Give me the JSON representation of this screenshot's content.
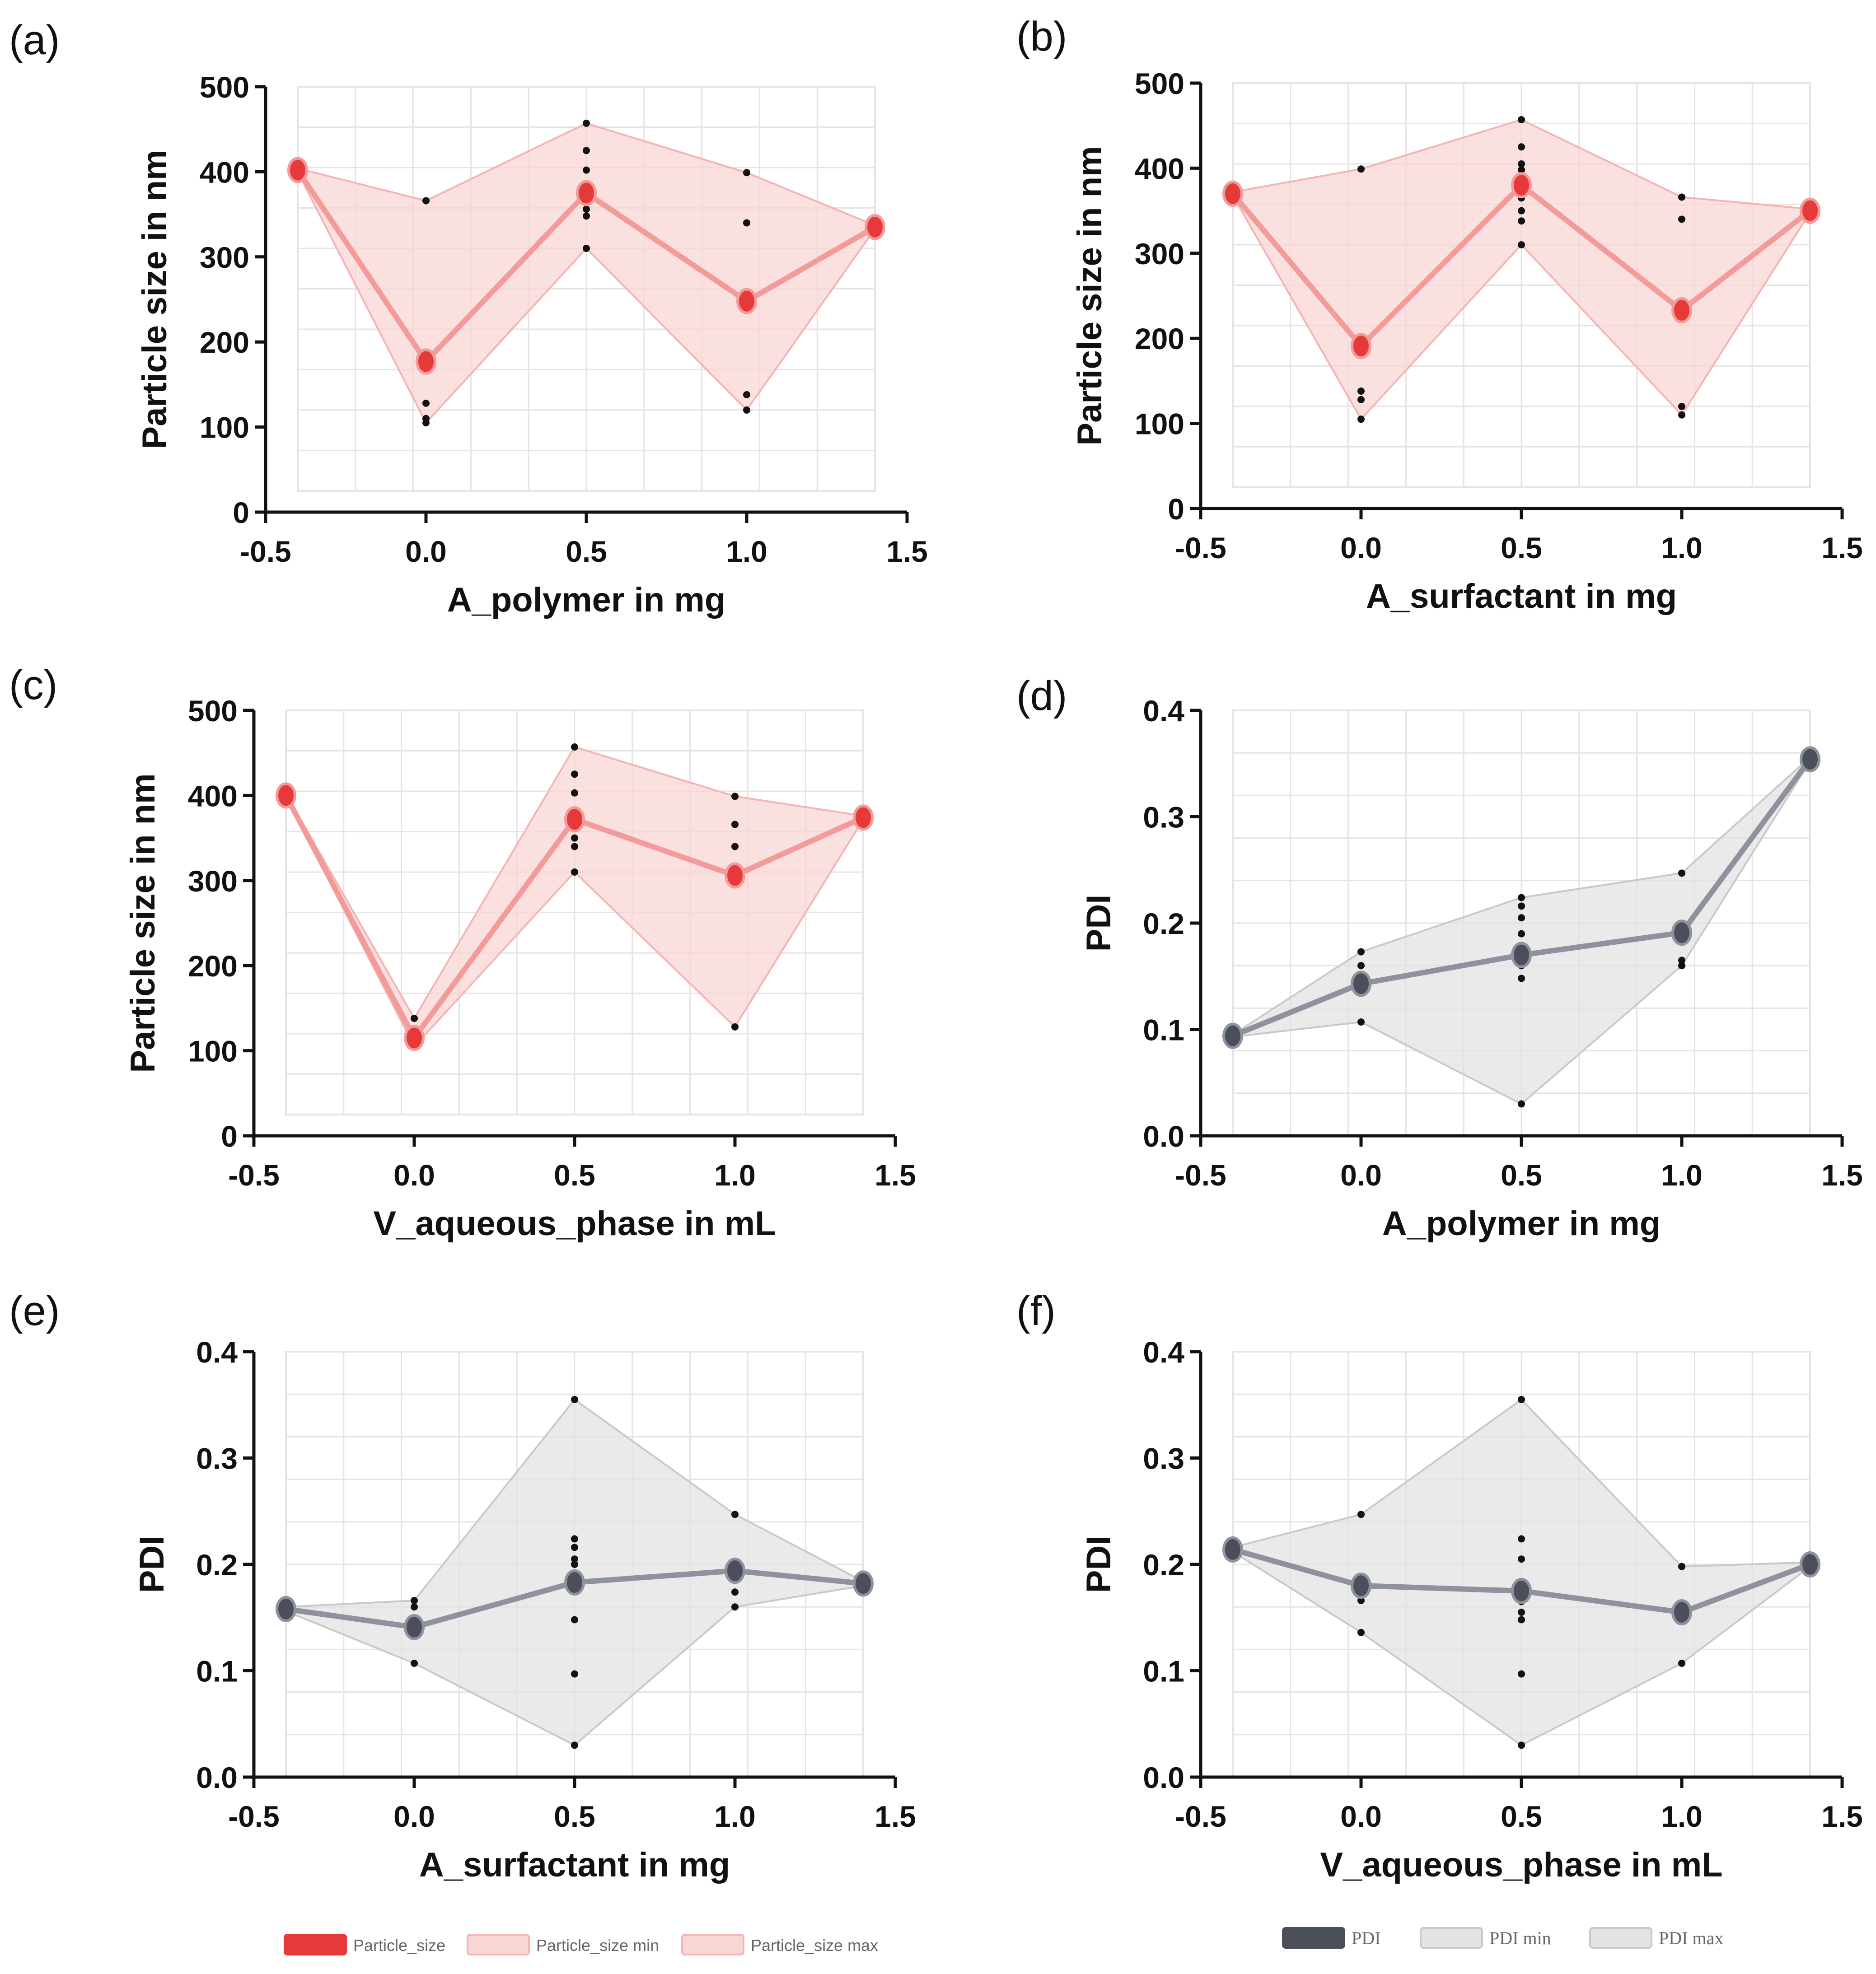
{
  "figure_colors": {
    "ps_line": "#f39a9a",
    "ps_marker": "#e63a3a",
    "ps_band": "#f9d6d6",
    "ps_band_edge": "#f5b3b3",
    "pdi_line": "#8d929e",
    "pdi_marker": "#4a4f5a",
    "pdi_band": "#e3e3e3",
    "pdi_band_edge": "#c9c9c9",
    "grid": "#e4e4e4",
    "axis": "#111111",
    "point": "#111111"
  },
  "chart_data": [
    {
      "panel": "(a)",
      "type": "line",
      "theme": "ps",
      "xlabel": "A_polymer in mg",
      "ylabel": "Particle size in nm",
      "xlim": [
        -0.5,
        1.5
      ],
      "ylim": [
        0,
        500
      ],
      "xticks": [
        "-0.5",
        "0.0",
        "0.5",
        "1.0",
        "1.5"
      ],
      "yticks": [
        "0",
        "100",
        "200",
        "300",
        "400",
        "500"
      ],
      "x": [
        -0.4,
        0.0,
        0.5,
        1.0,
        1.4
      ],
      "series": [
        {
          "name": "Particle_size",
          "values": [
            402,
            177,
            375,
            248,
            335
          ]
        },
        {
          "name": "Particle_size min",
          "values": [
            400,
            105,
            310,
            120,
            333
          ]
        },
        {
          "name": "Particle_size max",
          "values": [
            404,
            366,
            457,
            399,
            337
          ]
        }
      ],
      "points": [
        [
          0.0,
          366
        ],
        [
          0.0,
          128
        ],
        [
          0.0,
          110
        ],
        [
          0.0,
          105
        ],
        [
          0.5,
          457
        ],
        [
          0.5,
          425
        ],
        [
          0.5,
          402
        ],
        [
          0.5,
          375
        ],
        [
          0.5,
          356
        ],
        [
          0.5,
          348
        ],
        [
          0.5,
          310
        ],
        [
          1.0,
          399
        ],
        [
          1.0,
          340
        ],
        [
          1.0,
          138
        ],
        [
          1.0,
          120
        ]
      ]
    },
    {
      "panel": "(b)",
      "type": "line",
      "theme": "ps",
      "xlabel": "A_surfactant in mg",
      "ylabel": "Particle size in nm",
      "xlim": [
        -0.5,
        1.5
      ],
      "ylim": [
        0,
        500
      ],
      "xticks": [
        "-0.5",
        "0.0",
        "0.5",
        "1.0",
        "1.5"
      ],
      "yticks": [
        "0",
        "100",
        "200",
        "300",
        "400",
        "500"
      ],
      "x": [
        -0.4,
        0.0,
        0.5,
        1.0,
        1.4
      ],
      "series": [
        {
          "name": "Particle_size",
          "values": [
            370,
            191,
            380,
            233,
            350
          ]
        },
        {
          "name": "Particle_size min",
          "values": [
            368,
            105,
            310,
            110,
            348
          ]
        },
        {
          "name": "Particle_size max",
          "values": [
            372,
            399,
            457,
            366,
            352
          ]
        }
      ],
      "points": [
        [
          0.0,
          399
        ],
        [
          0.0,
          138
        ],
        [
          0.0,
          128
        ],
        [
          0.0,
          105
        ],
        [
          0.5,
          457
        ],
        [
          0.5,
          425
        ],
        [
          0.5,
          405
        ],
        [
          0.5,
          398
        ],
        [
          0.5,
          375
        ],
        [
          0.5,
          365
        ],
        [
          0.5,
          350
        ],
        [
          0.5,
          338
        ],
        [
          0.5,
          310
        ],
        [
          1.0,
          366
        ],
        [
          1.0,
          340
        ],
        [
          1.0,
          120
        ],
        [
          1.0,
          110
        ]
      ]
    },
    {
      "panel": "(c)",
      "type": "line",
      "theme": "ps",
      "xlabel": "V_aqueous_phase in mL",
      "ylabel": "Particle size in nm",
      "xlim": [
        -0.5,
        1.5
      ],
      "ylim": [
        0,
        500
      ],
      "xticks": [
        "-0.5",
        "0.0",
        "0.5",
        "1.0",
        "1.5"
      ],
      "yticks": [
        "0",
        "100",
        "200",
        "300",
        "400",
        "500"
      ],
      "x": [
        -0.4,
        0.0,
        0.5,
        1.0,
        1.4
      ],
      "series": [
        {
          "name": "Particle_size",
          "values": [
            400,
            115,
            372,
            306,
            374
          ]
        },
        {
          "name": "Particle_size min",
          "values": [
            398,
            105,
            310,
            128,
            372
          ]
        },
        {
          "name": "Particle_size max",
          "values": [
            402,
            138,
            457,
            399,
            376
          ]
        }
      ],
      "points": [
        [
          0.0,
          138
        ],
        [
          0.0,
          110
        ],
        [
          0.5,
          457
        ],
        [
          0.5,
          425
        ],
        [
          0.5,
          403
        ],
        [
          0.5,
          378
        ],
        [
          0.5,
          365
        ],
        [
          0.5,
          350
        ],
        [
          0.5,
          340
        ],
        [
          0.5,
          310
        ],
        [
          1.0,
          399
        ],
        [
          1.0,
          366
        ],
        [
          1.0,
          340
        ],
        [
          1.0,
          128
        ]
      ]
    },
    {
      "panel": "(d)",
      "type": "line",
      "theme": "pdi",
      "xlabel": "A_polymer in mg",
      "ylabel": "PDI",
      "xlim": [
        -0.5,
        1.5
      ],
      "ylim": [
        0,
        0.4
      ],
      "xticks": [
        "-0.5",
        "0.0",
        "0.5",
        "1.0",
        "1.5"
      ],
      "yticks": [
        "0.0",
        "0.1",
        "0.2",
        "0.3",
        "0.4"
      ],
      "x": [
        -0.4,
        0.0,
        0.5,
        1.0,
        1.4
      ],
      "series": [
        {
          "name": "PDI",
          "values": [
            0.094,
            0.143,
            0.17,
            0.191,
            0.354
          ]
        },
        {
          "name": "PDI min",
          "values": [
            0.093,
            0.107,
            0.03,
            0.16,
            0.352
          ]
        },
        {
          "name": "PDI max",
          "values": [
            0.095,
            0.173,
            0.224,
            0.247,
            0.356
          ]
        }
      ],
      "points": [
        [
          0.0,
          0.173
        ],
        [
          0.0,
          0.16
        ],
        [
          0.0,
          0.107
        ],
        [
          0.5,
          0.224
        ],
        [
          0.5,
          0.216
        ],
        [
          0.5,
          0.205
        ],
        [
          0.5,
          0.19
        ],
        [
          0.5,
          0.175
        ],
        [
          0.5,
          0.17
        ],
        [
          0.5,
          0.16
        ],
        [
          0.5,
          0.148
        ],
        [
          0.5,
          0.03
        ],
        [
          1.0,
          0.247
        ],
        [
          1.0,
          0.165
        ],
        [
          1.0,
          0.16
        ]
      ]
    },
    {
      "panel": "(e)",
      "type": "line",
      "theme": "pdi",
      "xlabel": "A_surfactant in mg",
      "ylabel": "PDI",
      "xlim": [
        -0.5,
        1.5
      ],
      "ylim": [
        0,
        0.4
      ],
      "xticks": [
        "-0.5",
        "0.0",
        "0.5",
        "1.0",
        "1.5"
      ],
      "yticks": [
        "0.0",
        "0.1",
        "0.2",
        "0.3",
        "0.4"
      ],
      "x": [
        -0.4,
        0.0,
        0.5,
        1.0,
        1.4
      ],
      "series": [
        {
          "name": "PDI",
          "values": [
            0.158,
            0.141,
            0.183,
            0.194,
            0.182
          ]
        },
        {
          "name": "PDI min",
          "values": [
            0.156,
            0.107,
            0.03,
            0.16,
            0.18
          ]
        },
        {
          "name": "PDI max",
          "values": [
            0.16,
            0.166,
            0.355,
            0.247,
            0.184
          ]
        }
      ],
      "points": [
        [
          0.0,
          0.166
        ],
        [
          0.0,
          0.16
        ],
        [
          0.0,
          0.107
        ],
        [
          0.5,
          0.355
        ],
        [
          0.5,
          0.224
        ],
        [
          0.5,
          0.216
        ],
        [
          0.5,
          0.205
        ],
        [
          0.5,
          0.2
        ],
        [
          0.5,
          0.19
        ],
        [
          0.5,
          0.148
        ],
        [
          0.5,
          0.097
        ],
        [
          0.5,
          0.03
        ],
        [
          1.0,
          0.247
        ],
        [
          1.0,
          0.174
        ],
        [
          1.0,
          0.16
        ]
      ]
    },
    {
      "panel": "(f)",
      "type": "line",
      "theme": "pdi",
      "xlabel": "V_aqueous_phase in mL",
      "ylabel": "PDI",
      "xlim": [
        -0.5,
        1.5
      ],
      "ylim": [
        0,
        0.4
      ],
      "xticks": [
        "-0.5",
        "0.0",
        "0.5",
        "1.0",
        "1.5"
      ],
      "yticks": [
        "0.0",
        "0.1",
        "0.2",
        "0.3",
        "0.4"
      ],
      "x": [
        -0.4,
        0.0,
        0.5,
        1.0,
        1.4
      ],
      "series": [
        {
          "name": "PDI",
          "values": [
            0.214,
            0.18,
            0.175,
            0.155,
            0.2
          ]
        },
        {
          "name": "PDI min",
          "values": [
            0.212,
            0.136,
            0.03,
            0.107,
            0.198
          ]
        },
        {
          "name": "PDI max",
          "values": [
            0.216,
            0.247,
            0.355,
            0.198,
            0.202
          ]
        }
      ],
      "points": [
        [
          0.0,
          0.247
        ],
        [
          0.0,
          0.166
        ],
        [
          0.0,
          0.136
        ],
        [
          0.5,
          0.355
        ],
        [
          0.5,
          0.224
        ],
        [
          0.5,
          0.205
        ],
        [
          0.5,
          0.18
        ],
        [
          0.5,
          0.165
        ],
        [
          0.5,
          0.155
        ],
        [
          0.5,
          0.148
        ],
        [
          0.5,
          0.097
        ],
        [
          0.5,
          0.03
        ],
        [
          1.0,
          0.198
        ],
        [
          1.0,
          0.107
        ]
      ]
    }
  ],
  "legends": {
    "ps": [
      "Particle_size",
      "Particle_size min",
      "Particle_size max"
    ],
    "pdi": [
      "PDI",
      "PDI min",
      "PDI max"
    ]
  }
}
